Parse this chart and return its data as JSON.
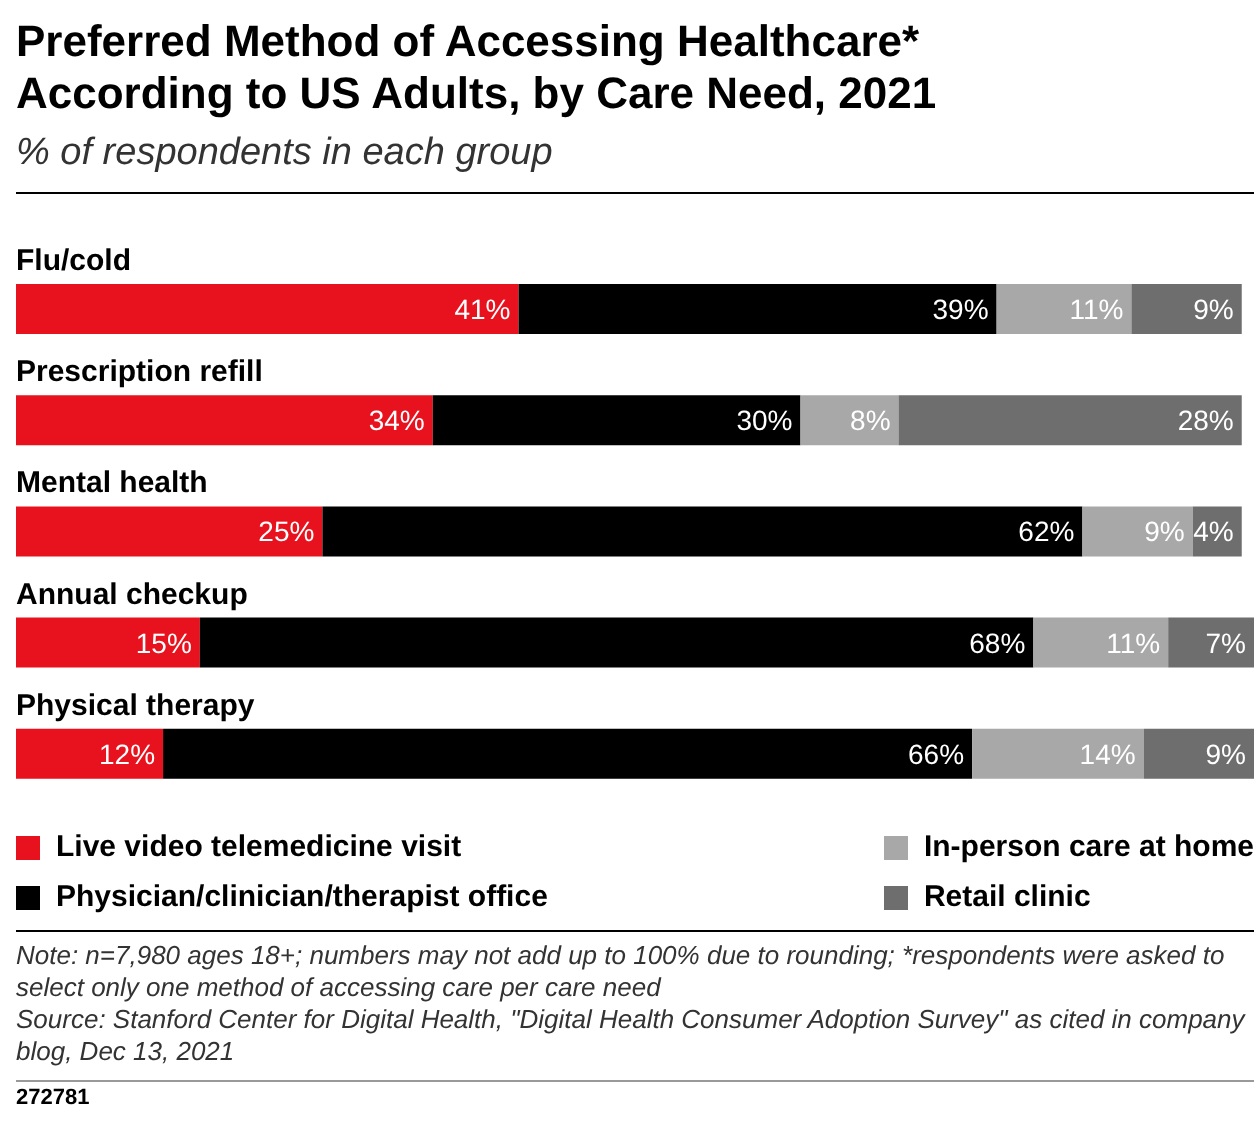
{
  "chart_data": {
    "type": "bar",
    "orientation": "horizontal",
    "stacked": true,
    "title": "Preferred Method of Accessing Healthcare* According to US Adults, by Care Need, 2021",
    "subtitle": "% of respondents in each group",
    "categories": [
      "Flu/cold",
      "Prescription refill",
      "Mental health",
      "Annual checkup",
      "Physical therapy"
    ],
    "series": [
      {
        "name": "Live video telemedicine visit",
        "color": "#e8121e",
        "values": [
          41,
          34,
          25,
          15,
          12
        ],
        "value_labels": [
          "41%",
          "34%",
          "25%",
          "15%",
          "12%"
        ]
      },
      {
        "name": "Physician/clinician/therapist office",
        "color": "#000000",
        "values": [
          39,
          30,
          62,
          68,
          66
        ],
        "value_labels": [
          "39%",
          "30%",
          "62%",
          "68%",
          "66%"
        ]
      },
      {
        "name": "In-person care at home",
        "color": "#a8a8a8",
        "values": [
          11,
          8,
          9,
          11,
          14
        ],
        "value_labels": [
          "11%",
          "8%",
          "9%",
          "11%",
          "14%"
        ]
      },
      {
        "name": "Retail clinic",
        "color": "#6e6e6e",
        "values": [
          9,
          28,
          4,
          7,
          9
        ],
        "value_labels": [
          "9%",
          "28%",
          "4%",
          "7%",
          "9%"
        ]
      }
    ],
    "legend": "bottom",
    "annotations": [
      "Note: n=7,980 ages 18+; numbers may not add up to 100% due to rounding; *respondents were asked to select only one method of accessing care per care need",
      "Source: Stanford Center for Digital Health, \"Digital Health Consumer Adoption Survey\" as cited in company blog, Dec 13, 2021",
      "272781"
    ]
  }
}
